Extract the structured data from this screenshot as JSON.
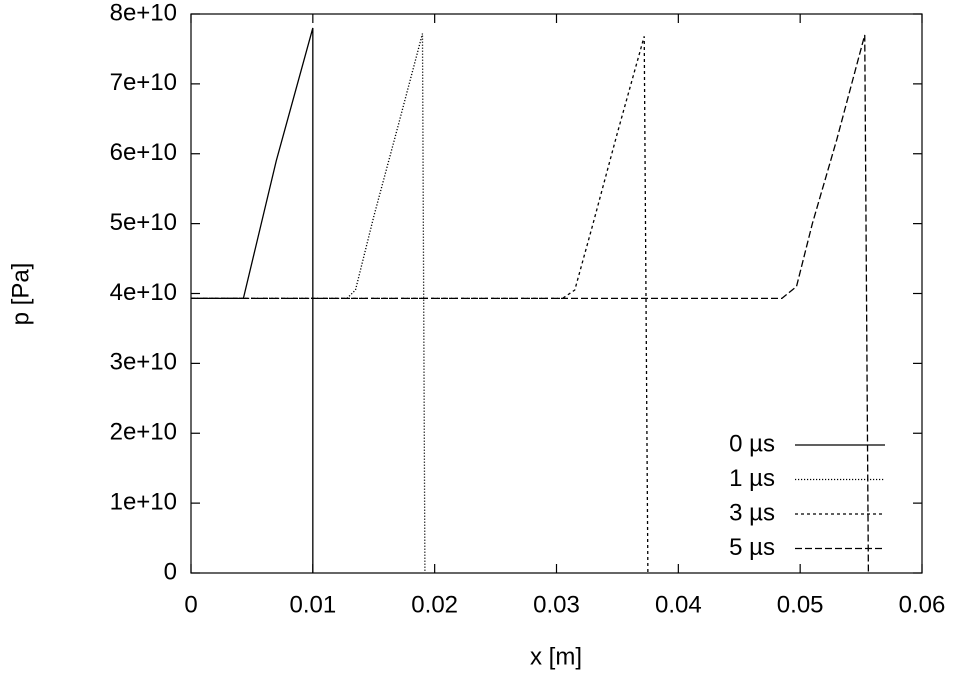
{
  "chart_data": {
    "type": "line",
    "xlabel": "x [m]",
    "ylabel": "p [Pa]",
    "xlim": [
      0,
      0.06
    ],
    "ylim": [
      0,
      80000000000.0
    ],
    "xticks": [
      0,
      0.01,
      0.02,
      0.03,
      0.04,
      0.05,
      0.06
    ],
    "yticks": [
      0,
      {
        "value": 10000000000.0,
        "label": "1e+10"
      },
      {
        "value": 20000000000.0,
        "label": "2e+10"
      },
      {
        "value": 30000000000.0,
        "label": "3e+10"
      },
      {
        "value": 40000000000.0,
        "label": "4e+10"
      },
      {
        "value": 50000000000.0,
        "label": "5e+10"
      },
      {
        "value": 60000000000.0,
        "label": "6e+10"
      },
      {
        "value": 70000000000.0,
        "label": "7e+10"
      },
      {
        "value": 80000000000.0,
        "label": "8e+10"
      }
    ],
    "grid": false,
    "legend": "lower right",
    "series": [
      {
        "name": "0 µs",
        "color": "#000000",
        "dash": "solid",
        "x": [
          0,
          0.0043,
          0.007,
          0.01,
          0.01
        ],
        "values": [
          39300000000.0,
          39300000000.0,
          59000000000.0,
          78000000000.0,
          0
        ]
      },
      {
        "name": "1 µs",
        "color": "#000000",
        "dash": "dotted",
        "x": [
          0,
          0.0128,
          0.0135,
          0.015,
          0.017,
          0.019,
          0.0192
        ],
        "values": [
          39300000000.0,
          39300000000.0,
          40500000000.0,
          51000000000.0,
          64000000000.0,
          77200000000.0,
          0
        ]
      },
      {
        "name": "3 µs",
        "color": "#000000",
        "dash": "dashed",
        "x": [
          0,
          0.0305,
          0.0315,
          0.033,
          0.035,
          0.0372,
          0.0375
        ],
        "values": [
          39300000000.0,
          39300000000.0,
          40500000000.0,
          50000000000.0,
          63000000000.0,
          76800000000.0,
          0
        ]
      },
      {
        "name": "5 µs",
        "color": "#000000",
        "dash": "long-dash",
        "x": [
          0,
          0.0485,
          0.0497,
          0.051,
          0.053,
          0.0553,
          0.0556
        ],
        "values": [
          39300000000.0,
          39300000000.0,
          41000000000.0,
          50000000000.0,
          62000000000.0,
          77000000000.0,
          0
        ]
      }
    ]
  }
}
